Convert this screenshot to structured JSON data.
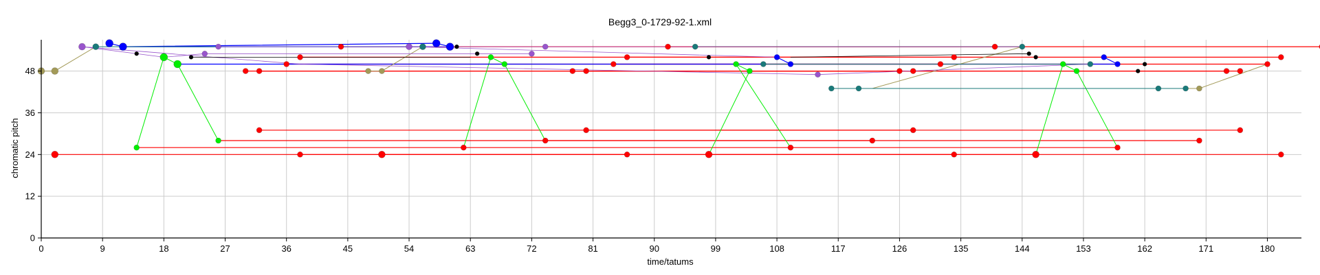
{
  "chart_data": {
    "type": "scatter",
    "title": "Begg3_0-1729-92-1.xml",
    "xlabel": "time/tatums",
    "ylabel": "chromatic pitch",
    "xlim": [
      0,
      185
    ],
    "ylim": [
      0,
      57
    ],
    "xticks": [
      0,
      9,
      18,
      27,
      36,
      45,
      54,
      63,
      72,
      81,
      90,
      99,
      108,
      117,
      126,
      135,
      144,
      153,
      162,
      171,
      180
    ],
    "yticks": [
      0,
      12,
      24,
      36,
      48
    ],
    "grid": true,
    "legend": "none",
    "colors": {
      "red": "#ff0000",
      "blue": "#0000ff",
      "green": "#00ee00",
      "olive": "#a39a58",
      "teal": "#1a7a7a",
      "purple": "#7a1a7a",
      "violet": "#9955cc",
      "black": "#000000",
      "grid": "#cccccc"
    },
    "series": [
      {
        "color": "#ff0000",
        "width": 1.2,
        "stroke_width": 1.2,
        "mode": "segments",
        "segments": [
          [
            [
              2,
              24
            ],
            [
              146,
              24
            ]
          ],
          [
            [
              38,
              24
            ],
            [
              182,
              24
            ]
          ],
          [
            [
              50,
              24
            ],
            [
              86,
              24
            ]
          ],
          [
            [
              98,
              24
            ],
            [
              134,
              24
            ]
          ],
          [
            [
              14,
              26
            ],
            [
              158,
              26
            ]
          ],
          [
            [
              26,
              28
            ],
            [
              170,
              28
            ]
          ],
          [
            [
              74,
              28
            ],
            [
              122,
              28
            ]
          ],
          [
            [
              32,
              31
            ],
            [
              176,
              31
            ]
          ],
          [
            [
              80,
              31
            ],
            [
              128,
              31
            ]
          ],
          [
            [
              30,
              48
            ],
            [
              174,
              48
            ]
          ],
          [
            [
              32,
              48
            ],
            [
              176,
              48
            ]
          ],
          [
            [
              78,
              48
            ],
            [
              126,
              48
            ]
          ],
          [
            [
              80,
              48
            ],
            [
              128,
              48
            ]
          ],
          [
            [
              36,
              50
            ],
            [
              180,
              50
            ]
          ],
          [
            [
              84,
              50
            ],
            [
              132,
              50
            ]
          ],
          [
            [
              38,
              52
            ],
            [
              182,
              52
            ]
          ],
          [
            [
              86,
              52
            ],
            [
              134,
              52
            ]
          ],
          [
            [
              44,
              55
            ],
            [
              188,
              55
            ]
          ],
          [
            [
              92,
              55
            ],
            [
              140,
              55
            ]
          ]
        ],
        "points": [
          [
            2,
            24,
            8
          ],
          [
            38,
            24,
            6
          ],
          [
            50,
            24,
            8
          ],
          [
            86,
            24,
            6
          ],
          [
            98,
            24,
            8
          ],
          [
            134,
            24,
            6
          ],
          [
            146,
            24,
            8
          ],
          [
            182,
            24,
            6
          ],
          [
            62,
            26,
            6
          ],
          [
            110,
            26,
            6
          ],
          [
            158,
            26,
            6
          ],
          [
            74,
            28,
            6
          ],
          [
            122,
            28,
            6
          ],
          [
            170,
            28,
            6
          ],
          [
            32,
            31,
            6
          ],
          [
            80,
            31,
            6
          ],
          [
            128,
            31,
            6
          ],
          [
            176,
            31,
            6
          ],
          [
            30,
            48,
            6
          ],
          [
            32,
            48,
            6
          ],
          [
            78,
            48,
            6
          ],
          [
            80,
            48,
            6
          ],
          [
            126,
            48,
            6
          ],
          [
            128,
            48,
            6
          ],
          [
            174,
            48,
            6
          ],
          [
            176,
            48,
            6
          ],
          [
            36,
            50,
            6
          ],
          [
            84,
            50,
            6
          ],
          [
            132,
            50,
            6
          ],
          [
            180,
            50,
            6
          ],
          [
            38,
            52,
            6
          ],
          [
            86,
            52,
            6
          ],
          [
            134,
            52,
            6
          ],
          [
            182,
            52,
            6
          ],
          [
            44,
            55,
            6
          ],
          [
            92,
            55,
            6
          ],
          [
            140,
            55,
            6
          ],
          [
            188,
            55,
            6
          ]
        ]
      },
      {
        "color": "#00ee00",
        "width": 1,
        "stroke_width": 1,
        "mode": "polyline",
        "lines": [
          [
            [
              14,
              26
            ],
            [
              18,
              52
            ],
            [
              20,
              50
            ],
            [
              26,
              28
            ]
          ],
          [
            [
              62,
              26
            ],
            [
              66,
              52
            ],
            [
              68,
              50
            ],
            [
              74,
              28
            ]
          ],
          [
            [
              110,
              26
            ],
            [
              102,
              50
            ],
            [
              104,
              48
            ],
            [
              98,
              24
            ]
          ],
          [
            [
              146,
              24
            ],
            [
              150,
              50
            ],
            [
              152,
              48
            ],
            [
              158,
              26
            ]
          ]
        ],
        "points": [
          [
            14,
            26,
            6
          ],
          [
            18,
            52,
            9
          ],
          [
            20,
            50,
            9
          ],
          [
            26,
            28,
            6
          ],
          [
            66,
            52,
            6
          ],
          [
            68,
            50,
            6
          ],
          [
            102,
            50,
            6
          ],
          [
            104,
            48,
            6
          ],
          [
            150,
            50,
            6
          ],
          [
            152,
            48,
            6
          ]
        ]
      },
      {
        "color": "#0000ff",
        "width": 1.2,
        "stroke_width": 1.2,
        "mode": "polyline",
        "lines": [
          [
            [
              10,
              56
            ],
            [
              12,
              55
            ],
            [
              58,
              56
            ],
            [
              60,
              55
            ],
            [
              12,
              55
            ]
          ],
          [
            [
              108,
              52
            ],
            [
              110,
              50
            ],
            [
              20,
              50
            ]
          ],
          [
            [
              156,
              52
            ],
            [
              158,
              50
            ],
            [
              110,
              50
            ]
          ]
        ],
        "points": [
          [
            10,
            56,
            9
          ],
          [
            12,
            55,
            9
          ],
          [
            58,
            56,
            9
          ],
          [
            60,
            55,
            9
          ],
          [
            108,
            52,
            6
          ],
          [
            110,
            50,
            6
          ],
          [
            156,
            52,
            6
          ],
          [
            158,
            50,
            6
          ]
        ]
      },
      {
        "color": "#a39a58",
        "width": 1,
        "stroke_width": 1,
        "mode": "polyline",
        "lines": [
          [
            [
              0,
              48
            ],
            [
              2,
              48
            ],
            [
              8,
              55
            ]
          ],
          [
            [
              48,
              48
            ],
            [
              50,
              48
            ],
            [
              56,
              55
            ]
          ],
          [
            [
              120,
              43
            ],
            [
              122,
              43
            ],
            [
              144,
              55
            ]
          ],
          [
            [
              168,
              43
            ],
            [
              170,
              43
            ],
            [
              180,
              50
            ]
          ]
        ],
        "points": [
          [
            0,
            48,
            8
          ],
          [
            2,
            48,
            8
          ],
          [
            48,
            48,
            6
          ],
          [
            50,
            48,
            6
          ],
          [
            170,
            43,
            6
          ]
        ]
      },
      {
        "color": "#1a7a7a",
        "width": 1,
        "stroke_width": 1,
        "mode": "polyline",
        "lines": [
          [
            [
              8,
              55
            ],
            [
              26,
              55
            ],
            [
              56,
              55
            ]
          ],
          [
            [
              96,
              55
            ],
            [
              144,
              55
            ]
          ],
          [
            [
              106,
              50
            ],
            [
              154,
              50
            ]
          ],
          [
            [
              116,
              43
            ],
            [
              164,
              43
            ]
          ],
          [
            [
              120,
              43
            ],
            [
              168,
              43
            ]
          ]
        ],
        "points": [
          [
            8,
            55,
            7
          ],
          [
            56,
            55,
            7
          ],
          [
            96,
            55,
            6
          ],
          [
            144,
            55,
            6
          ],
          [
            106,
            50,
            6
          ],
          [
            154,
            50,
            6
          ],
          [
            116,
            43,
            6
          ],
          [
            120,
            43,
            6
          ],
          [
            164,
            43,
            6
          ],
          [
            168,
            43,
            6
          ]
        ]
      },
      {
        "color": "#9955cc",
        "width": 0.8,
        "stroke_width": 0.8,
        "mode": "polyline",
        "lines": [
          [
            [
              6,
              55
            ],
            [
              18,
              52
            ],
            [
              24,
              53
            ],
            [
              72,
              53
            ]
          ],
          [
            [
              6,
              55
            ],
            [
              38,
              50
            ],
            [
              114,
              47
            ],
            [
              154,
              50
            ]
          ],
          [
            [
              26,
              55
            ],
            [
              74,
              55
            ],
            [
              144,
              55
            ]
          ],
          [
            [
              54,
              55
            ],
            [
              108,
              52
            ]
          ]
        ],
        "points": [
          [
            6,
            55,
            8
          ],
          [
            24,
            53,
            6
          ],
          [
            26,
            55,
            6
          ],
          [
            54,
            55,
            7
          ],
          [
            72,
            53,
            6
          ],
          [
            74,
            55,
            6
          ],
          [
            114,
            47,
            6
          ]
        ]
      },
      {
        "color": "#000000",
        "width": 0.8,
        "stroke_width": 0.8,
        "mode": "segments",
        "segments": [
          [
            [
              22,
              52
            ],
            [
              63,
              52
            ]
          ],
          [
            [
              110,
              52
            ],
            [
              145,
              53
            ]
          ]
        ],
        "points": [
          [
            14,
            53,
            4
          ],
          [
            22,
            52,
            4
          ],
          [
            61,
            55,
            4
          ],
          [
            64,
            53,
            4
          ],
          [
            98,
            52,
            4
          ],
          [
            145,
            53,
            4
          ],
          [
            146,
            52,
            4
          ],
          [
            161,
            48,
            4
          ],
          [
            162,
            50,
            4
          ]
        ]
      }
    ]
  }
}
